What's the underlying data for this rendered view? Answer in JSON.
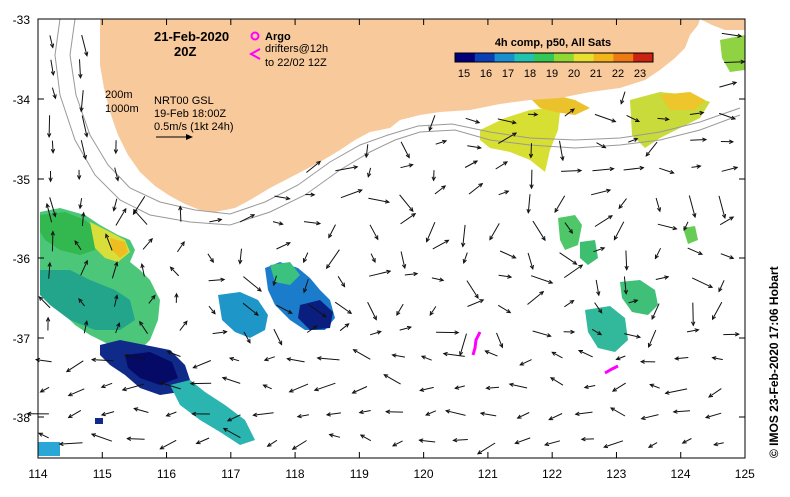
{
  "map": {
    "date_label": "21-Feb-2020",
    "time_label": "20Z",
    "argo_label": "Argo",
    "drifters_label": "drifters@12h",
    "drifters_to_label": "to 22/02 12Z",
    "depth_200": "200m",
    "depth_1000": "1000m",
    "product_label": "NRT00 GSL",
    "product_date": "19-Feb 18:00Z",
    "scale_label": "0.5m/s (1kt 24h)",
    "credit": "© IMOS 23-Feb-2020 17:06 Hobart",
    "x_ticks": [
      "114",
      "115",
      "116",
      "117",
      "118",
      "119",
      "120",
      "121",
      "122",
      "123",
      "124",
      "125"
    ],
    "y_ticks": [
      "-33",
      "-34",
      "-35",
      "-36",
      "-37",
      "-38"
    ]
  },
  "colorbar": {
    "title": "4h comp, p50, All Sats",
    "ticks": [
      "15",
      "16",
      "17",
      "18",
      "19",
      "20",
      "21",
      "22",
      "23"
    ],
    "colors": [
      "#00007a",
      "#0a3fb5",
      "#1a8fd0",
      "#22c2b0",
      "#33c755",
      "#8fd933",
      "#e8e030",
      "#f2b61a",
      "#ee7a14",
      "#cc2211"
    ]
  },
  "colors": {
    "land": "#f8c99b",
    "argo": "#ff00ff",
    "arrow": "#111111",
    "isobath": "#999999"
  }
}
